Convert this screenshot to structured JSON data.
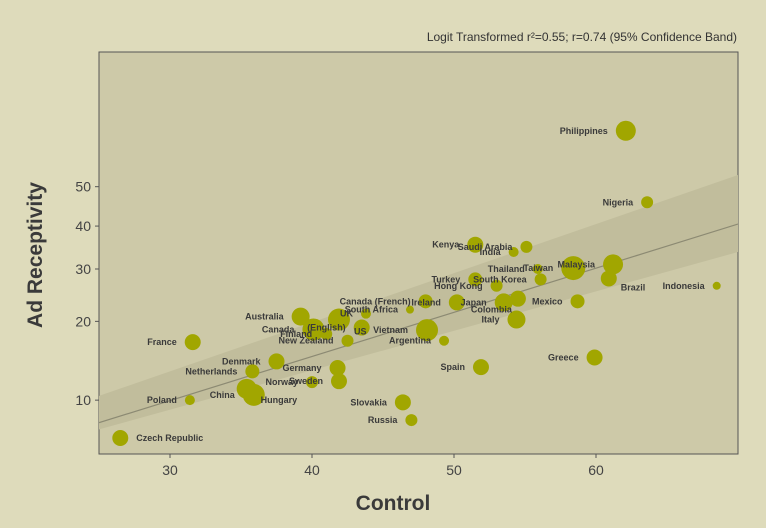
{
  "chart_data": {
    "type": "scatter",
    "subtitle": "Logit Transformed r²=0.55; r=0.74 (95% Confidence Band)",
    "xlabel": "Control",
    "ylabel": "Ad Receptivity",
    "xlim": [
      25,
      70
    ],
    "ylim": [
      6,
      80
    ],
    "y_scale": "logit",
    "x_ticks": [
      30,
      40,
      50,
      60
    ],
    "y_ticks": [
      10,
      20,
      30,
      40,
      50
    ],
    "fit_line": {
      "x": [
        25,
        70
      ],
      "y": [
        8.1,
        40.5
      ]
    },
    "confidence_band": {
      "x": [
        25,
        70
      ],
      "lower": [
        7.6,
        33.8
      ],
      "upper": [
        10.4,
        53.0
      ]
    },
    "colors": {
      "background": "#dedbbb",
      "plot_area": "#cdc9a8",
      "band": "#c1bd9c",
      "point": "#a1a600",
      "line": "#8c8a73"
    },
    "points": [
      {
        "label": "Philippines",
        "x": 62.1,
        "y": 64.0,
        "size": 10,
        "label_side": "left"
      },
      {
        "label": "Nigeria",
        "x": 63.6,
        "y": 46.0,
        "size": 6,
        "label_side": "left"
      },
      {
        "label": "Kenya",
        "x": 51.5,
        "y": 35.5,
        "size": 8,
        "label_side": "left"
      },
      {
        "label": "Saudi Arabia",
        "x": 55.1,
        "y": 35.0,
        "size": 6,
        "label_side": "left"
      },
      {
        "label": "India",
        "x": 54.2,
        "y": 33.8,
        "size": 5,
        "label_side": "left"
      },
      {
        "label": "Malaysia",
        "x": 61.2,
        "y": 31.0,
        "size": 10,
        "label_side": "left"
      },
      {
        "label": "Thailand",
        "x": 55.9,
        "y": 30.0,
        "size": 5,
        "label_side": "left"
      },
      {
        "label": "Taiwan",
        "x": 58.4,
        "y": 30.2,
        "size": 12,
        "label_side": "left"
      },
      {
        "label": "Brazil",
        "x": 60.9,
        "y": 28.0,
        "size": 8,
        "label_side": "below-right"
      },
      {
        "label": "Indonesia",
        "x": 68.5,
        "y": 26.5,
        "size": 4,
        "label_side": "left"
      },
      {
        "label": "Turkey",
        "x": 51.5,
        "y": 27.8,
        "size": 7,
        "label_side": "left"
      },
      {
        "label": "South Korea",
        "x": 56.1,
        "y": 27.8,
        "size": 6,
        "label_side": "left"
      },
      {
        "label": "Hong Kong",
        "x": 53.0,
        "y": 26.5,
        "size": 6,
        "label_side": "left"
      },
      {
        "label": "Canada (French)",
        "x": 48.0,
        "y": 23.5,
        "size": 7,
        "label_side": "left"
      },
      {
        "label": "Ireland",
        "x": 50.2,
        "y": 23.3,
        "size": 8,
        "label_side": "left"
      },
      {
        "label": "Japan",
        "x": 53.5,
        "y": 23.3,
        "size": 9,
        "label_side": "left"
      },
      {
        "label": "Mexico",
        "x": 58.7,
        "y": 23.5,
        "size": 7,
        "label_side": "left"
      },
      {
        "label": "South Africa",
        "x": 46.9,
        "y": 22.0,
        "size": 4,
        "label_side": "left"
      },
      {
        "label": "Colombia",
        "x": 54.5,
        "y": 24.0,
        "size": 8,
        "label_side": "below-left"
      },
      {
        "label": "Australia",
        "x": 39.2,
        "y": 20.8,
        "size": 9,
        "label_side": "left"
      },
      {
        "label": "US",
        "x": 41.9,
        "y": 20.3,
        "size": 11,
        "label_side": "below-right"
      },
      {
        "label": "UK",
        "x": 43.8,
        "y": 21.3,
        "size": 5,
        "label_side": "left"
      },
      {
        "label": "Italy",
        "x": 54.4,
        "y": 20.3,
        "size": 9,
        "label_side": "left"
      },
      {
        "label": "Canada",
        "x": 40.1,
        "y": 18.7,
        "size": 11,
        "label_side": "left"
      },
      {
        "label": "(English)",
        "x": 43.5,
        "y": 19.0,
        "size": 8,
        "label_side": "left"
      },
      {
        "label": "Vietnam",
        "x": 48.1,
        "y": 18.6,
        "size": 11,
        "label_side": "left"
      },
      {
        "label": "Finland",
        "x": 41.0,
        "y": 18.0,
        "size": 6,
        "label_side": "left"
      },
      {
        "label": "New Zealand",
        "x": 42.5,
        "y": 17.0,
        "size": 6,
        "label_side": "left"
      },
      {
        "label": "Argentina",
        "x": 49.3,
        "y": 17.0,
        "size": 5,
        "label_side": "left"
      },
      {
        "label": "France",
        "x": 31.6,
        "y": 16.8,
        "size": 8,
        "label_side": "left"
      },
      {
        "label": "Greece",
        "x": 59.9,
        "y": 14.7,
        "size": 8,
        "label_side": "left"
      },
      {
        "label": "Denmark",
        "x": 37.5,
        "y": 14.2,
        "size": 8,
        "label_side": "left"
      },
      {
        "label": "Spain",
        "x": 51.9,
        "y": 13.5,
        "size": 8,
        "label_side": "left"
      },
      {
        "label": "Germany",
        "x": 41.8,
        "y": 13.4,
        "size": 8,
        "label_side": "left"
      },
      {
        "label": "Netherlands",
        "x": 35.8,
        "y": 13.0,
        "size": 7,
        "label_side": "left"
      },
      {
        "label": "Norway",
        "x": 40.0,
        "y": 11.8,
        "size": 6,
        "label_side": "left"
      },
      {
        "label": "Sweden",
        "x": 41.9,
        "y": 11.9,
        "size": 8,
        "label_side": "left"
      },
      {
        "label": "Hungary",
        "x": 35.4,
        "y": 11.1,
        "size": 10,
        "label_side": "below-right"
      },
      {
        "label": "China",
        "x": 35.9,
        "y": 10.5,
        "size": 11,
        "label_side": "left"
      },
      {
        "label": "Poland",
        "x": 31.4,
        "y": 10.0,
        "size": 5,
        "label_side": "left"
      },
      {
        "label": "Slovakia",
        "x": 46.4,
        "y": 9.8,
        "size": 8,
        "label_side": "left"
      },
      {
        "label": "Russia",
        "x": 47.0,
        "y": 8.3,
        "size": 6,
        "label_side": "left"
      },
      {
        "label": "Czech Republic",
        "x": 26.5,
        "y": 7.0,
        "size": 8,
        "label_side": "right"
      }
    ]
  }
}
